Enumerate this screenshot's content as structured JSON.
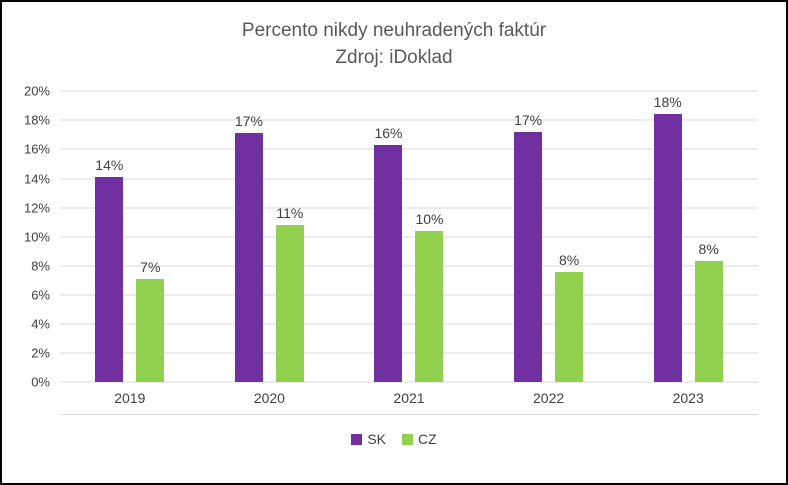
{
  "chart_data": {
    "type": "bar",
    "title": "Percento nikdy neuhradených faktúr",
    "subtitle": "Zdroj: iDoklad",
    "categories": [
      "2019",
      "2020",
      "2021",
      "2022",
      "2023"
    ],
    "series": [
      {
        "name": "SK",
        "color": "#7030a0",
        "values": [
          14.1,
          17.1,
          16.3,
          17.2,
          18.4
        ],
        "labels": [
          "14%",
          "17%",
          "16%",
          "17%",
          "18%"
        ]
      },
      {
        "name": "CZ",
        "color": "#92d050",
        "values": [
          7.1,
          10.8,
          10.4,
          7.6,
          8.3
        ],
        "labels": [
          "7%",
          "11%",
          "10%",
          "8%",
          "8%"
        ]
      }
    ],
    "ylim": [
      0,
      20
    ],
    "ytick_step": 2,
    "ytick_labels": [
      "0%",
      "2%",
      "4%",
      "6%",
      "8%",
      "10%",
      "12%",
      "14%",
      "16%",
      "18%",
      "20%"
    ],
    "grid": true,
    "legend_position": "bottom",
    "colors": {
      "title_text": "#595959",
      "axis_text": "#404040",
      "gridline": "#d9d9d9",
      "border": "#000000",
      "background": "#ffffff"
    }
  }
}
